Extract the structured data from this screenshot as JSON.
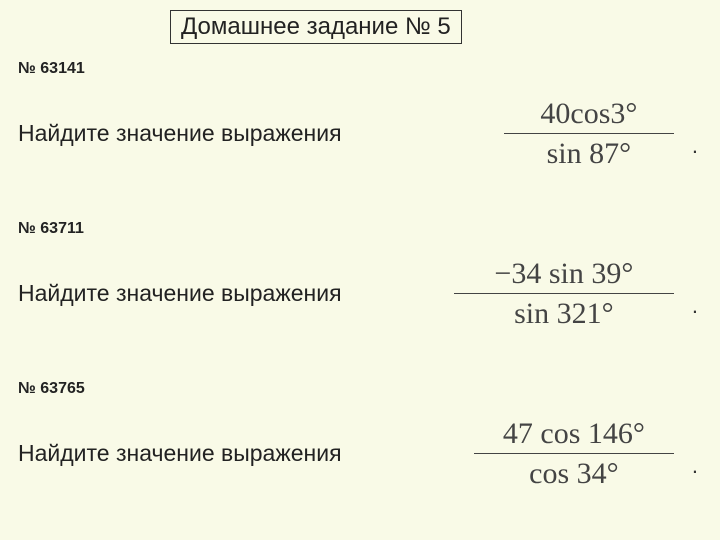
{
  "page": {
    "background_color": "#f9fae7",
    "text_color": "#222222",
    "formula_color": "#444444",
    "border_color": "#333333"
  },
  "title": "Домашнее задание № 5",
  "problems": [
    {
      "id_label": "№ 63141",
      "prompt": "Найдите значение выражения",
      "numerator": "40cos3°",
      "denominator": "sin 87°",
      "tail": "."
    },
    {
      "id_label": "№ 63711",
      "prompt": "Найдите значение выражения",
      "numerator": "−34 sin 39°",
      "denominator": "sin 321°",
      "tail": "."
    },
    {
      "id_label": "№ 63765",
      "prompt": "Найдите значение выражения",
      "numerator": "47 cos 146°",
      "denominator": "cos 34°",
      "tail": "."
    }
  ]
}
